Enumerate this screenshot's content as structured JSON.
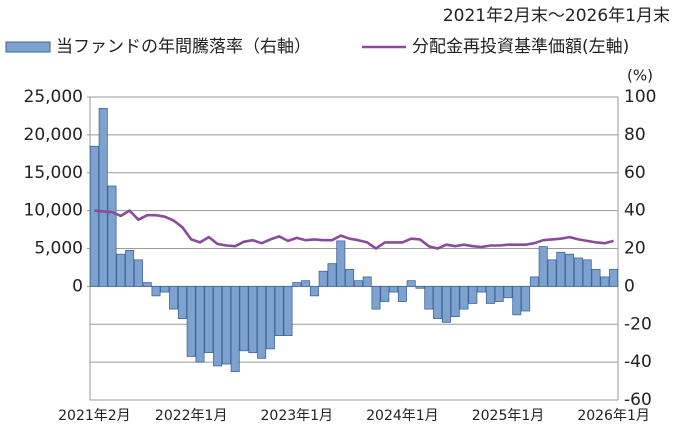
{
  "chart_data": {
    "type": "bar",
    "subtitle": "2021年2月末～2026年1月末",
    "y2label": "(%)",
    "categories": [
      "2021年2月",
      null,
      null,
      null,
      null,
      null,
      null,
      null,
      null,
      null,
      null,
      "2022年1月",
      null,
      null,
      null,
      null,
      null,
      null,
      null,
      null,
      null,
      null,
      null,
      "2023年1月",
      null,
      null,
      null,
      null,
      null,
      null,
      null,
      null,
      null,
      null,
      null,
      "2024年1月",
      null,
      null,
      null,
      null,
      null,
      null,
      null,
      null,
      null,
      null,
      null,
      "2025年1月",
      null,
      null,
      null,
      null,
      null,
      null,
      null,
      null,
      null,
      null,
      null,
      "2026年1月"
    ],
    "series": [
      {
        "name": "当ファンドの年間騰落率（右軸）",
        "type": "bar",
        "axis": "y2",
        "color": "#7ea2cf",
        "stroke": "#3f6698",
        "values": [
          74,
          94,
          53,
          17,
          19,
          14,
          2,
          -5,
          -3,
          -12,
          -17,
          -37,
          -40,
          -35,
          -42,
          -41,
          -45,
          -34,
          -35,
          -38,
          -33,
          -26,
          -26,
          2,
          3,
          -5,
          8,
          12,
          24,
          9,
          3,
          5,
          -12,
          -8,
          -3,
          -8,
          3,
          -1,
          -12,
          -17,
          -19,
          -16,
          -12,
          -9,
          -3,
          -9,
          -8,
          -6,
          -15,
          -13,
          5,
          21,
          14,
          18,
          17,
          15,
          14,
          9,
          5,
          9
        ]
      },
      {
        "name": "分配金再投資基準価額(左軸)",
        "type": "line",
        "color": "#8a4b9b",
        "values": [
          10000,
          9900,
          9800,
          9300,
          10000,
          8800,
          9400,
          9400,
          9200,
          8700,
          7800,
          6200,
          5800,
          6500,
          5600,
          5400,
          5300,
          5900,
          6100,
          5700,
          6200,
          6600,
          6000,
          6400,
          6100,
          6200,
          6100,
          6100,
          6700,
          6300,
          6100,
          5800,
          5000,
          5800,
          5800,
          5800,
          6300,
          6200,
          5300,
          5000,
          5500,
          5300,
          5500,
          5300,
          5200,
          5400,
          5400,
          5500,
          5500,
          5500,
          5700,
          6100,
          6200,
          6300,
          6500,
          6200,
          6000,
          5800,
          5700,
          6000
        ]
      }
    ],
    "ylim": [
      -15000,
      25000
    ],
    "yticks": [
      {
        "value": 0,
        "label": "0"
      },
      {
        "value": 5000,
        "label": "5,000"
      },
      {
        "value": 10000,
        "label": "10,000"
      },
      {
        "value": 15000,
        "label": "15,000"
      },
      {
        "value": 20000,
        "label": "20,000"
      },
      {
        "value": 25000,
        "label": "25,000"
      }
    ],
    "y2lim": [
      -60,
      100
    ],
    "y2ticks": [
      -60,
      -40,
      -20,
      0,
      20,
      40,
      60,
      80,
      100
    ],
    "grid": true
  }
}
